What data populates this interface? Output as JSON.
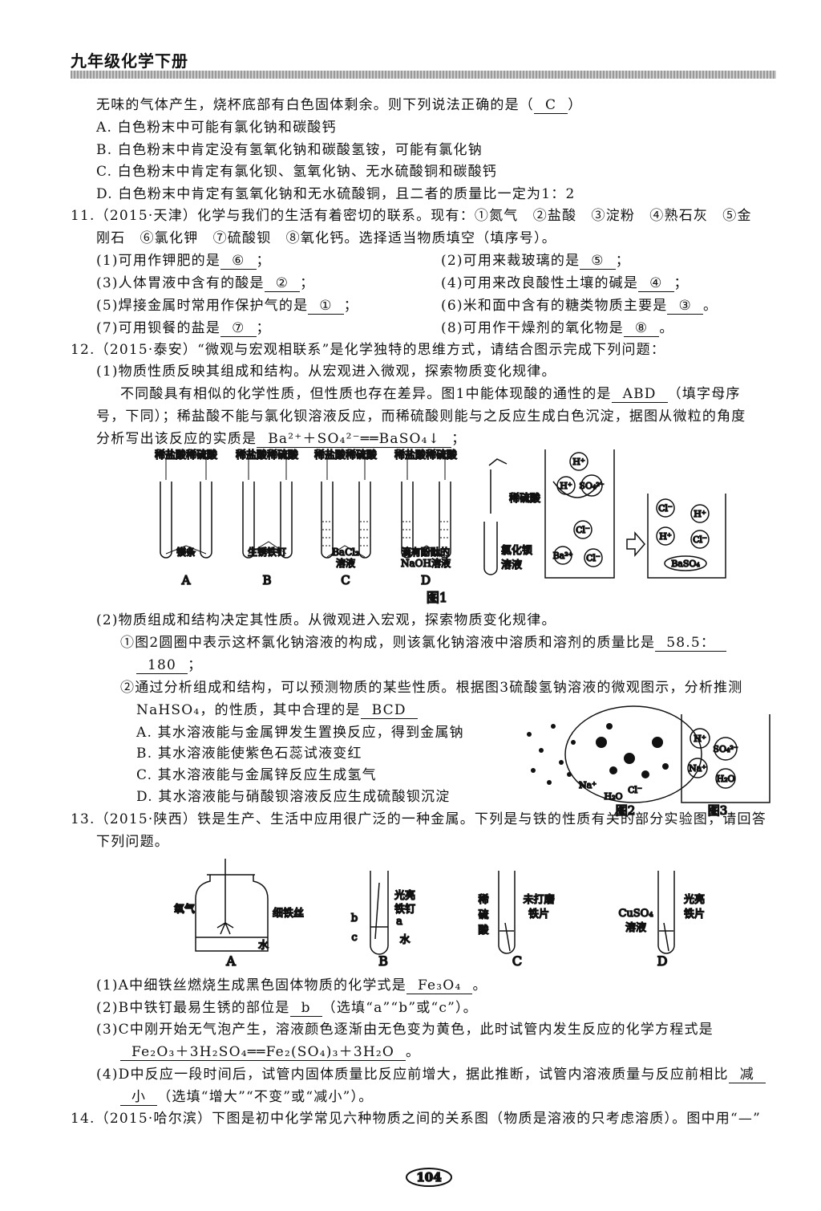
{
  "header": {
    "title": "九年级化学下册"
  },
  "q10": {
    "stem": "无味的气体产生，烧杯底部有白色固体剩余。则下列说法正确的是（",
    "answer": "C",
    "close": "）",
    "options": [
      "A. 白色粉末中可能有氯化钠和碳酸钙",
      "B. 白色粉末中肯定没有氢氧化钠和碳酸氢铵，可能有氯化钠",
      "C. 白色粉末中肯定有氯化钡、氢氧化钠、无水硫酸铜和碳酸钙",
      "D. 白色粉末中肯定有氢氧化钠和无水硫酸铜，且二者的质量比一定为1：2"
    ]
  },
  "q11": {
    "stem": [
      "11.（2015·天津）化学与我们的生活有着密切的联系。现有：①氮气　②盐酸　③淀粉　④熟石灰　⑤金",
      "刚石　⑥氯化钾　⑦硫酸钡　⑧氧化钙。选择适当物质填空（填序号）。"
    ],
    "items": [
      {
        "prompt": "(1)可用作钾肥的是",
        "answer": "⑥",
        "end": "；"
      },
      {
        "prompt": "(2)可用来裁玻璃的是",
        "answer": "⑤",
        "end": "；"
      },
      {
        "prompt": "(3)人体胃液中含有的酸是",
        "answer": "②",
        "end": "；"
      },
      {
        "prompt": "(4)可用来改良酸性土壤的碱是",
        "answer": "④",
        "end": "；"
      },
      {
        "prompt": "(5)焊接金属时常用作保护气的是",
        "answer": "①",
        "end": "；"
      },
      {
        "prompt": "(6)米和面中含有的糖类物质主要是",
        "answer": "③",
        "end": "。"
      },
      {
        "prompt": "(7)可用钡餐的盐是",
        "answer": "⑦",
        "end": "；"
      },
      {
        "prompt": "(8)可用作干燥剂的氧化物是",
        "answer": "⑧",
        "end": "。"
      }
    ]
  },
  "q12": {
    "stem": "12.（2015·泰安）“微观与宏观相联系”是化学独特的思维方式，请结合图示完成下列问题：",
    "part1": {
      "intro": "(1)物质性质反映其组成和结构。从宏观进入微观，探索物质变化规律。",
      "text1": "不同酸具有相似的化学性质，但性质也存在差异。图1中能体现酸的通性的是",
      "answer1": "ABD",
      "text1b": "（填字母序",
      "text2": "号，下同）；稀盐酸不能与氯化钡溶液反应，而稀硫酸则能与之反应生成白色沉淀，据图从微粒的角度",
      "text3": "分析写出该反应的实质是",
      "answer2": "Ba²⁺＋SO₄²⁻══BaSO₄↓",
      "end": "；"
    },
    "figure1": {
      "headers": [
        "稀盐酸稀硫酸",
        "稀盐酸稀硫酸",
        "稀盐酸稀硫酸",
        "稀盐酸稀硫酸"
      ],
      "items": [
        [
          "镁条"
        ],
        [
          "生锈铁钉"
        ],
        [
          "BaCl₂",
          "溶液"
        ],
        [
          "滴有酚酞的",
          "NaOH溶液"
        ]
      ],
      "letters": [
        "A",
        "B",
        "C",
        "D"
      ],
      "dropper": "稀硫酸",
      "tube": [
        "氯化钡",
        "溶液"
      ],
      "beaker1_ions": [
        "H⁺",
        "H⁺",
        "SO₄²⁻",
        "Cl⁻",
        "Ba²⁺",
        "Cl⁻"
      ],
      "beaker2_ions": [
        "Cl⁻",
        "H⁺",
        "H⁺",
        "Cl⁻",
        "BaSO₄"
      ],
      "caption": "图1"
    },
    "part2": {
      "intro": "(2)物质组成和结构决定其性质。从微观进入宏观，探索物质变化规律。",
      "q1": {
        "text": "①图2圆圈中表示这杯氯化钠溶液的构成，则该氯化钠溶液中溶质和溶剂的质量比是",
        "answer": [
          "58.5：",
          "180"
        ],
        "end": "；"
      },
      "q2": {
        "text": [
          "②通过分析组成和结构，可以预测物质的某些性质。根据图3硫酸氢钠溶液的微观图示，分析推测",
          "NaHSO₄，的性质，其中合理的是"
        ],
        "answer": "BCD",
        "options": [
          "A. 其水溶液能与金属钾发生置换反应，得到金属钠",
          "B. 其水溶液能使紫色石蕊试液变红",
          "C. 其水溶液能与金属锌反应生成氢气",
          "D. 其水溶液能与硝酸钡溶液反应生成硫酸钡沉淀"
        ]
      }
    },
    "figure2": {
      "labels": [
        "Na⁺",
        "H₂O",
        "Cl⁻"
      ],
      "caption": "图2"
    },
    "figure3": {
      "ions": [
        "H⁺",
        "SO₄²⁻",
        "Na⁺",
        "H₂O"
      ],
      "caption": "图3"
    }
  },
  "q13": {
    "stem": [
      "13.（2015·陕西）铁是生产、生活中应用很广泛的一种金属。下列是与铁的性质有关的部分实验图，请回答",
      "下列问题。"
    ],
    "figure": {
      "A": {
        "labels": [
          "氧气",
          "细铁丝",
          "水"
        ],
        "letter": "A"
      },
      "B": {
        "labels": [
          [
            "光亮",
            "铁钉"
          ],
          "a",
          "b",
          "c",
          "水"
        ],
        "letter": "B"
      },
      "C": {
        "labels": [
          [
            "稀",
            "硫",
            "酸"
          ],
          [
            "未打磨",
            "铁片"
          ]
        ],
        "letter": "C"
      },
      "D": {
        "labels": [
          [
            "CuSO₄",
            "溶液"
          ],
          [
            "光亮",
            "铁片"
          ]
        ],
        "letter": "D"
      }
    },
    "q1": {
      "text": "(1)A中细铁丝燃烧生成黑色固体物质的化学式是",
      "answer": "Fe₃O₄",
      "end": "。"
    },
    "q2": {
      "text": "(2)B中铁钉最易生锈的部位是",
      "answer": "b",
      "end": "（选填“a”“b”或“c”）。"
    },
    "q3": {
      "text": "(3)C中刚开始无气泡产生，溶液颜色逐渐由无色变为黄色，此时试管内发生反应的化学方程式是",
      "answer": "Fe₂O₃＋3H₂SO₄══Fe₂(SO₄)₃＋3H₂O",
      "end": "。"
    },
    "q4": {
      "text": "(4)D中反应一段时间后，试管内固体质量比反应前增大，据此推断，试管内溶液质量与反应前相比",
      "answer": [
        "减",
        "小"
      ],
      "end": "（选填“增大”“不变”或“减小”）。"
    }
  },
  "q14": {
    "stem": "14.（2015·哈尔滨）下图是初中化学常见六种物质之间的关系图（物质是溶液的只考虑溶质）。图中用“—”"
  },
  "footer": {
    "page": "104"
  }
}
